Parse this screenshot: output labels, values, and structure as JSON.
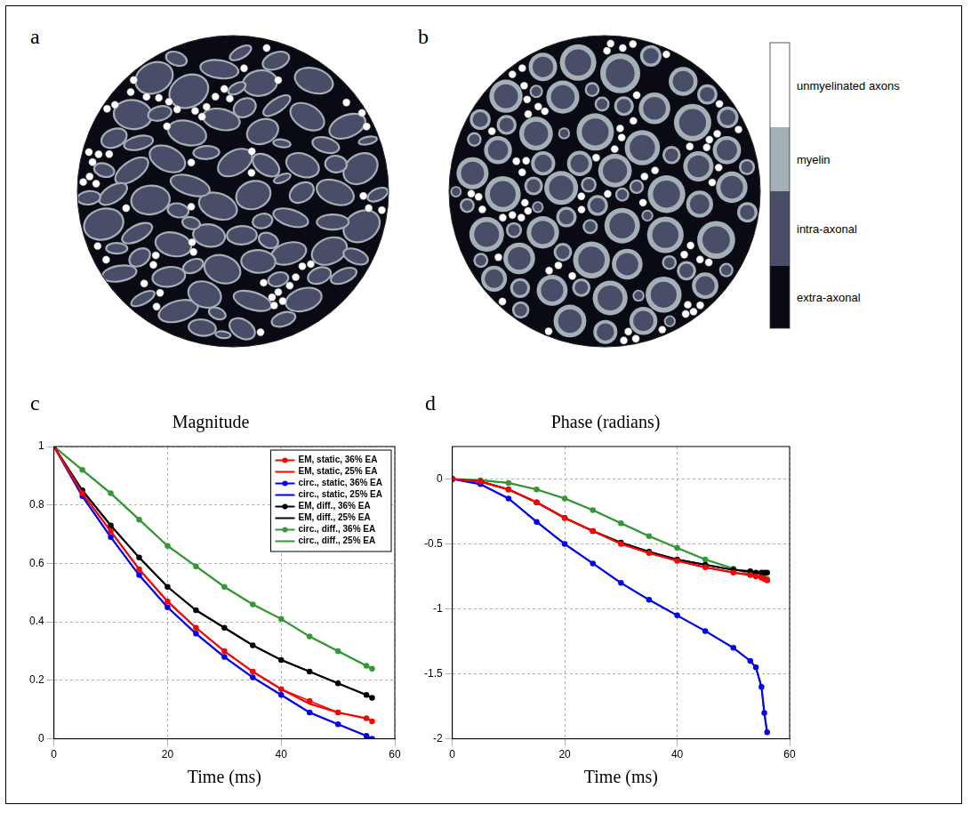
{
  "figure": {
    "diagram_panels": [
      {
        "letter": "a"
      },
      {
        "letter": "b"
      }
    ],
    "color_key": [
      {
        "label": "unmyelinated axons",
        "color": "#ffffff"
      },
      {
        "label": "myelin",
        "color": "#a3b1b6"
      },
      {
        "label": "intra-axonal",
        "color": "#4a4d68"
      },
      {
        "label": "extra-axonal",
        "color": "#0a0a14"
      }
    ]
  },
  "chart_data": [
    {
      "letter": "c",
      "type": "line",
      "title": "Magnitude",
      "x_label": "Time (ms)",
      "x": [
        0,
        5,
        10,
        15,
        20,
        25,
        30,
        35,
        40,
        45,
        50,
        55,
        56
      ],
      "series": [
        {
          "name": "EM, static, 36% EA",
          "color": "#ff0000",
          "marker": "circle",
          "values": [
            1,
            0.84,
            0.71,
            0.58,
            0.47,
            0.38,
            0.3,
            0.23,
            0.17,
            0.13,
            0.09,
            0.07,
            0.06
          ]
        },
        {
          "name": "EM, static, 25% EA",
          "color": "#ff0000",
          "marker": "none",
          "values": [
            1,
            0.84,
            0.71,
            0.58,
            0.47,
            0.38,
            0.3,
            0.23,
            0.17,
            0.12,
            0.09,
            0.07,
            0.06
          ]
        },
        {
          "name": "circ., static, 36% EA",
          "color": "#0000ff",
          "marker": "circle",
          "values": [
            1,
            0.83,
            0.69,
            0.56,
            0.45,
            0.36,
            0.28,
            0.21,
            0.15,
            0.09,
            0.05,
            0.01,
            0
          ]
        },
        {
          "name": "circ., static, 25% EA",
          "color": "#0000ff",
          "marker": "none",
          "values": [
            1,
            0.83,
            0.69,
            0.56,
            0.45,
            0.36,
            0.28,
            0.21,
            0.15,
            0.09,
            0.05,
            0.01,
            0
          ]
        },
        {
          "name": "EM, diff., 36% EA",
          "color": "#000000",
          "marker": "circle",
          "values": [
            1,
            0.85,
            0.73,
            0.62,
            0.52,
            0.44,
            0.38,
            0.32,
            0.27,
            0.23,
            0.19,
            0.15,
            0.14
          ]
        },
        {
          "name": "EM, diff., 25% EA",
          "color": "#000000",
          "marker": "none",
          "values": [
            1,
            0.85,
            0.73,
            0.62,
            0.52,
            0.44,
            0.38,
            0.32,
            0.27,
            0.23,
            0.19,
            0.15,
            0.14
          ]
        },
        {
          "name": "circ., diff., 36% EA",
          "color": "#339933",
          "marker": "circle",
          "values": [
            1,
            0.92,
            0.84,
            0.75,
            0.66,
            0.59,
            0.52,
            0.46,
            0.41,
            0.35,
            0.3,
            0.25,
            0.24
          ]
        },
        {
          "name": "circ., diff., 25% EA",
          "color": "#339933",
          "marker": "none",
          "values": [
            1,
            0.92,
            0.84,
            0.75,
            0.66,
            0.59,
            0.52,
            0.46,
            0.41,
            0.35,
            0.3,
            0.25,
            0.24
          ]
        }
      ],
      "xlim": [
        0,
        60
      ],
      "xticks": [
        0,
        20,
        40,
        60
      ],
      "ylim": [
        0,
        1
      ],
      "yticks": [
        0,
        0.2,
        0.4,
        0.6,
        0.8,
        1
      ],
      "grid": true,
      "legend": "upper right"
    },
    {
      "letter": "d",
      "type": "line",
      "title": "Phase (radians)",
      "x_label": "Time (ms)",
      "x": [
        0,
        5,
        10,
        15,
        20,
        25,
        30,
        35,
        40,
        45,
        50,
        53,
        54,
        55,
        55.5,
        56
      ],
      "series": [
        {
          "name": "EM, static, 36% EA",
          "color": "#ff0000",
          "marker": "circle",
          "values": [
            0,
            -0.02,
            -0.08,
            -0.18,
            -0.3,
            -0.4,
            -0.5,
            -0.57,
            -0.63,
            -0.68,
            -0.72,
            -0.74,
            -0.75,
            -0.76,
            -0.77,
            -0.78
          ]
        },
        {
          "name": "EM, static, 25% EA",
          "color": "#ff0000",
          "marker": "none",
          "values": [
            0,
            -0.02,
            -0.08,
            -0.18,
            -0.3,
            -0.4,
            -0.5,
            -0.57,
            -0.63,
            -0.68,
            -0.72,
            -0.74,
            -0.75,
            -0.76,
            -0.77,
            -0.78
          ]
        },
        {
          "name": "circ., static, 36% EA",
          "color": "#0000ff",
          "marker": "circle",
          "values": [
            0,
            -0.04,
            -0.15,
            -0.33,
            -0.5,
            -0.65,
            -0.8,
            -0.93,
            -1.05,
            -1.17,
            -1.3,
            -1.4,
            -1.45,
            -1.6,
            -1.8,
            -1.95
          ]
        },
        {
          "name": "circ., static, 25% EA",
          "color": "#0000ff",
          "marker": "none",
          "values": [
            0,
            -0.04,
            -0.15,
            -0.33,
            -0.5,
            -0.65,
            -0.8,
            -0.93,
            -1.05,
            -1.17,
            -1.3,
            -1.4,
            -1.45,
            -1.6,
            -1.8,
            -1.95
          ]
        },
        {
          "name": "EM, diff., 36% EA",
          "color": "#000000",
          "marker": "circle",
          "values": [
            0,
            -0.02,
            -0.08,
            -0.18,
            -0.3,
            -0.4,
            -0.49,
            -0.56,
            -0.62,
            -0.66,
            -0.7,
            -0.71,
            -0.72,
            -0.72,
            -0.72,
            -0.72
          ]
        },
        {
          "name": "EM, diff., 25% EA",
          "color": "#000000",
          "marker": "none",
          "values": [
            0,
            -0.02,
            -0.08,
            -0.18,
            -0.3,
            -0.4,
            -0.49,
            -0.56,
            -0.62,
            -0.66,
            -0.7,
            -0.71,
            -0.72,
            -0.72,
            -0.72,
            -0.72
          ]
        },
        {
          "name": "circ., diff., 36% EA",
          "color": "#339933",
          "marker": "circle",
          "values": [
            0,
            -0.01,
            -0.03,
            -0.08,
            -0.15,
            -0.24,
            -0.34,
            -0.44,
            -0.53,
            -0.62,
            -0.69,
            -0.73,
            -0.74,
            -0.75,
            -0.76,
            -0.77
          ]
        },
        {
          "name": "circ., diff., 25% EA",
          "color": "#339933",
          "marker": "none",
          "values": [
            0,
            -0.01,
            -0.03,
            -0.08,
            -0.15,
            -0.24,
            -0.34,
            -0.44,
            -0.53,
            -0.62,
            -0.69,
            -0.73,
            -0.74,
            -0.75,
            -0.76,
            -0.77
          ]
        }
      ],
      "xlim": [
        0,
        60
      ],
      "xticks": [
        0,
        20,
        40,
        60
      ],
      "ylim": [
        -2,
        0.25
      ],
      "yticks": [
        -2,
        -1.5,
        -1,
        -0.5,
        0
      ],
      "grid": true
    }
  ]
}
